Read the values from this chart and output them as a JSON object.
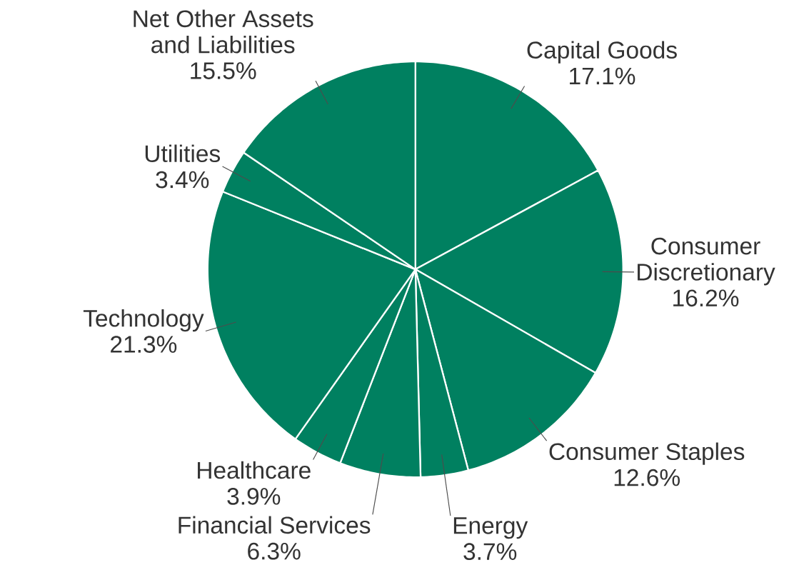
{
  "chart_data": {
    "type": "pie",
    "categories": [
      "Capital Goods",
      "Consumer Discretionary",
      "Consumer Staples",
      "Energy",
      "Financial Services",
      "Healthcare",
      "Technology",
      "Utilities",
      "Net Other Assets and Liabilities"
    ],
    "values": [
      17.1,
      16.2,
      12.6,
      3.7,
      6.3,
      3.9,
      21.3,
      3.4,
      15.5
    ],
    "value_labels": [
      "17.1%",
      "16.2%",
      "12.6%",
      "3.7%",
      "6.3%",
      "3.9%",
      "21.3%",
      "3.4%",
      "15.5%"
    ],
    "colors": [
      "#008060",
      "#008060",
      "#008060",
      "#008060",
      "#008060",
      "#008060",
      "#008060",
      "#008060",
      "#008060"
    ]
  }
}
